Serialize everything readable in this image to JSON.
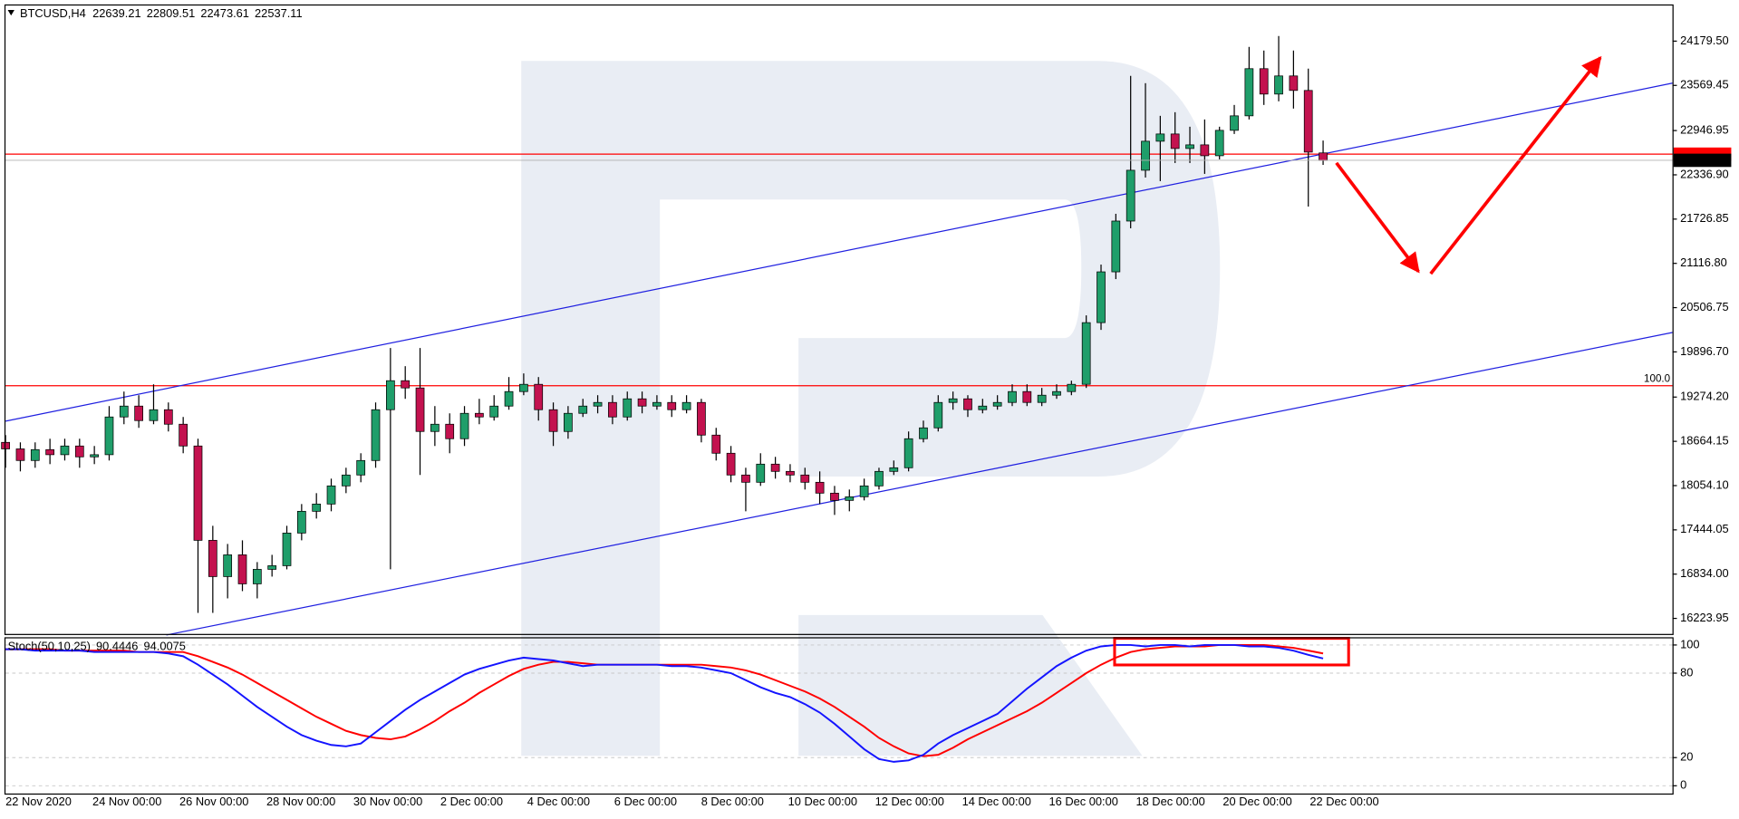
{
  "chart_data": [
    {
      "type": "candlestick",
      "symbol": "BTCUSD,H4",
      "up_color": "#1f9e6a",
      "down_color": "#c3124f",
      "candles": [
        [
          18650,
          18750,
          18300,
          18560
        ],
        [
          18560,
          18650,
          18250,
          18400
        ],
        [
          18400,
          18650,
          18300,
          18550
        ],
        [
          18550,
          18700,
          18350,
          18480
        ],
        [
          18480,
          18700,
          18400,
          18600
        ],
        [
          18600,
          18700,
          18300,
          18450
        ],
        [
          18450,
          18600,
          18350,
          18480
        ],
        [
          18480,
          19150,
          18400,
          19000
        ],
        [
          19000,
          19350,
          18900,
          19150
        ],
        [
          19150,
          19300,
          18850,
          18950
        ],
        [
          18950,
          19450,
          18900,
          19100
        ],
        [
          19100,
          19200,
          18800,
          18900
        ],
        [
          18900,
          19000,
          18500,
          18600
        ],
        [
          18600,
          18700,
          16300,
          17300
        ],
        [
          17300,
          17500,
          16300,
          16800
        ],
        [
          16800,
          17250,
          16500,
          17100
        ],
        [
          17100,
          17300,
          16600,
          16700
        ],
        [
          16700,
          17000,
          16500,
          16900
        ],
        [
          16900,
          17100,
          16800,
          16950
        ],
        [
          16950,
          17500,
          16900,
          17400
        ],
        [
          17400,
          17800,
          17300,
          17700
        ],
        [
          17700,
          17950,
          17600,
          17800
        ],
        [
          17800,
          18150,
          17700,
          18050
        ],
        [
          18050,
          18300,
          17950,
          18200
        ],
        [
          18200,
          18500,
          18100,
          18400
        ],
        [
          18400,
          19200,
          18300,
          19100
        ],
        [
          19100,
          19950,
          16900,
          19500
        ],
        [
          19500,
          19700,
          19250,
          19400
        ],
        [
          19400,
          19950,
          18200,
          18800
        ],
        [
          18800,
          19150,
          18600,
          18900
        ],
        [
          18900,
          19050,
          18500,
          18700
        ],
        [
          18700,
          19150,
          18600,
          19050
        ],
        [
          19050,
          19250,
          18900,
          19000
        ],
        [
          19000,
          19300,
          18950,
          19150
        ],
        [
          19150,
          19550,
          19100,
          19350
        ],
        [
          19350,
          19600,
          19300,
          19450
        ],
        [
          19450,
          19550,
          18950,
          19100
        ],
        [
          19100,
          19200,
          18600,
          18800
        ],
        [
          18800,
          19150,
          18700,
          19050
        ],
        [
          19050,
          19250,
          19000,
          19150
        ],
        [
          19150,
          19300,
          19050,
          19200
        ],
        [
          19200,
          19300,
          18900,
          19000
        ],
        [
          19000,
          19350,
          18950,
          19250
        ],
        [
          19250,
          19350,
          19050,
          19150
        ],
        [
          19150,
          19300,
          19100,
          19200
        ],
        [
          19200,
          19300,
          19000,
          19100
        ],
        [
          19100,
          19300,
          19050,
          19200
        ],
        [
          19200,
          19250,
          18650,
          18750
        ],
        [
          18750,
          18850,
          18400,
          18500
        ],
        [
          18500,
          18600,
          18100,
          18200
        ],
        [
          18200,
          18300,
          17700,
          18100
        ],
        [
          18100,
          18500,
          18050,
          18350
        ],
        [
          18350,
          18450,
          18150,
          18250
        ],
        [
          18250,
          18350,
          18100,
          18200
        ],
        [
          18200,
          18300,
          18000,
          18100
        ],
        [
          18100,
          18250,
          17800,
          17950
        ],
        [
          17950,
          18050,
          17650,
          17850
        ],
        [
          17850,
          18000,
          17700,
          17900
        ],
        [
          17900,
          18150,
          17850,
          18050
        ],
        [
          18050,
          18300,
          18000,
          18250
        ],
        [
          18250,
          18400,
          18200,
          18300
        ],
        [
          18300,
          18800,
          18250,
          18700
        ],
        [
          18700,
          18950,
          18650,
          18850
        ],
        [
          18850,
          19300,
          18800,
          19200
        ],
        [
          19200,
          19350,
          19100,
          19250
        ],
        [
          19250,
          19300,
          19000,
          19100
        ],
        [
          19100,
          19250,
          19050,
          19150
        ],
        [
          19150,
          19300,
          19100,
          19200
        ],
        [
          19200,
          19450,
          19150,
          19350
        ],
        [
          19350,
          19450,
          19150,
          19200
        ],
        [
          19200,
          19400,
          19150,
          19300
        ],
        [
          19300,
          19450,
          19250,
          19350
        ],
        [
          19350,
          19500,
          19300,
          19450
        ],
        [
          19450,
          20400,
          19400,
          20300
        ],
        [
          20300,
          21100,
          20200,
          21000
        ],
        [
          21000,
          21800,
          20900,
          21700
        ],
        [
          21700,
          23700,
          21600,
          22400
        ],
        [
          22400,
          23600,
          22300,
          22800
        ],
        [
          22800,
          23150,
          22250,
          22900
        ],
        [
          22900,
          23200,
          22500,
          22700
        ],
        [
          22700,
          23000,
          22500,
          22750
        ],
        [
          22750,
          23100,
          22350,
          22600
        ],
        [
          22600,
          23000,
          22550,
          22950
        ],
        [
          22950,
          23300,
          22900,
          23150
        ],
        [
          23150,
          24100,
          23100,
          23800
        ],
        [
          23800,
          24050,
          23300,
          23450
        ],
        [
          23450,
          24250,
          23350,
          23700
        ],
        [
          23700,
          24050,
          23250,
          23500
        ],
        [
          23500,
          23800,
          21900,
          22650
        ],
        [
          22639.21,
          22809.51,
          22473.61,
          22537.11
        ]
      ],
      "ylim": [
        16010,
        24670
      ],
      "yticks": [
        {
          "value": 24179.5,
          "label": "24179.50"
        },
        23569.45,
        22946.95,
        {
          "value": 22336.9,
          "label": "22336.90"
        },
        21726.85,
        {
          "value": 21116.8,
          "label": "21116.80"
        },
        20506.75,
        {
          "value": 19896.7,
          "label": "19896.70"
        },
        {
          "value": 19274.2,
          "label": "19274.20"
        },
        18664.15,
        {
          "value": 18054.1,
          "label": "18054.10"
        },
        17444.05,
        {
          "value": 16834,
          "label": "16834.00"
        },
        16223.95
      ],
      "levels": [
        {
          "value": 22622,
          "color": "#ff0000"
        },
        {
          "value": 19431,
          "label": "100.0",
          "color": "#ff0000"
        }
      ]
    },
    {
      "type": "line",
      "title": "Stoch(50,10,25)",
      "series": [
        {
          "color": "#1414ff",
          "values": [
            97,
            97,
            96,
            96,
            96,
            96,
            95,
            95,
            95,
            95,
            95,
            94,
            92,
            86,
            79,
            72,
            64,
            56,
            49,
            42,
            36,
            32,
            29,
            28,
            30,
            38,
            46,
            54,
            61,
            67,
            73,
            79,
            83,
            86,
            89,
            91,
            90,
            89,
            87,
            85,
            86,
            86,
            86,
            86,
            86,
            85,
            85,
            84,
            82,
            80,
            75,
            70,
            66,
            63,
            58,
            52,
            44,
            35,
            26,
            19,
            17,
            18,
            22,
            30,
            36,
            41,
            46,
            51,
            60,
            69,
            77,
            85,
            91,
            96,
            99,
            100,
            100,
            99,
            100,
            100,
            99,
            100,
            100,
            100,
            99,
            99,
            98,
            96,
            93,
            90.4446
          ]
        },
        {
          "color": "#ff0000",
          "values": [
            97,
            97,
            97,
            97,
            96,
            96,
            96,
            96,
            96,
            95,
            95,
            95,
            95,
            92,
            88,
            84,
            79,
            73,
            67,
            61,
            55,
            49,
            44,
            39,
            36,
            34,
            33,
            35,
            40,
            46,
            53,
            59,
            66,
            72,
            78,
            83,
            86,
            88,
            88,
            87,
            86,
            86,
            86,
            86,
            86,
            86,
            86,
            86,
            85,
            84,
            82,
            79,
            75,
            71,
            67,
            62,
            56,
            49,
            42,
            34,
            28,
            23,
            21,
            22,
            27,
            33,
            38,
            43,
            48,
            53,
            59,
            66,
            73,
            80,
            86,
            91,
            95,
            97,
            98,
            99,
            99,
            99,
            100,
            100,
            100,
            100,
            99,
            98,
            96,
            94.0075
          ]
        }
      ],
      "ylim": [
        -5.5,
        105.5
      ],
      "yticks": [
        100,
        80,
        20,
        0
      ],
      "grid": true,
      "x_labels": [
        "22 Nov 2020",
        "24 Nov 00:00",
        "26 Nov 00:00",
        "28 Nov 00:00",
        "30 Nov 00:00",
        "2 Dec 00:00",
        "4 Dec 00:00",
        "6 Dec 00:00",
        "8 Dec 00:00",
        "10 Dec 00:00",
        "12 Dec 00:00",
        "14 Dec 00:00",
        "16 Dec 00:00",
        "18 Dec 00:00",
        "20 Dec 00:00",
        "22 Dec 00:00"
      ]
    }
  ]
}
